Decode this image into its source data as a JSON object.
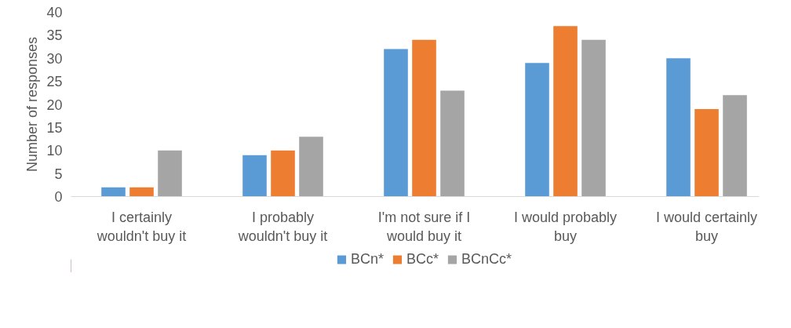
{
  "chart_data": {
    "type": "bar",
    "ylabel": "Number of responses",
    "categories": [
      "I certainly wouldn't buy it",
      "I probably wouldn't buy it",
      "I'm not sure if I would buy it",
      "I would probably buy",
      "I would certainly buy"
    ],
    "series": [
      {
        "name": "BCn*",
        "color": "#5b9bd5",
        "values": [
          2,
          9,
          32,
          29,
          30
        ]
      },
      {
        "name": "BCc*",
        "color": "#ed7d31",
        "values": [
          2,
          10,
          34,
          37,
          19
        ]
      },
      {
        "name": "BCnCc*",
        "color": "#a5a5a5",
        "values": [
          10,
          13,
          23,
          34,
          22
        ]
      }
    ],
    "ylim": [
      0,
      40
    ],
    "yticks": [
      0,
      5,
      10,
      15,
      20,
      25,
      30,
      35,
      40
    ],
    "grid": false,
    "legend": "bottom"
  }
}
